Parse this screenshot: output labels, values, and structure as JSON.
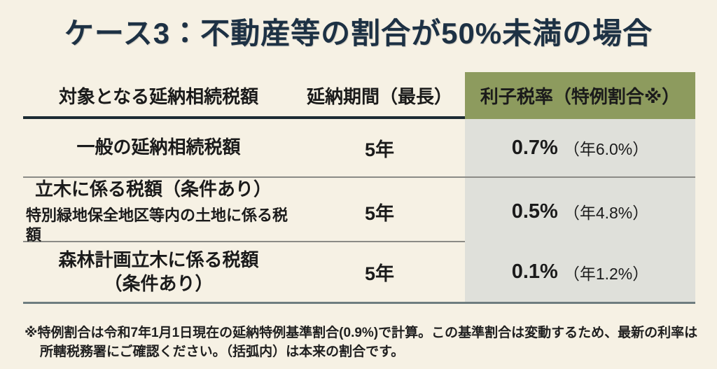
{
  "title": "ケース3：不動産等の割合が50%未満の場合",
  "table": {
    "headers": {
      "target": "対象となる延納相続税額",
      "period": "延納期間（最長）",
      "rate": "利子税率（特例割合※）"
    },
    "rows": [
      {
        "target_lines": [
          "一般の延納相続税額"
        ],
        "period": "5年",
        "rate": "0.7%",
        "original": "（年6.0%）"
      },
      {
        "target_lines": [
          "立木に係る税額（条件あり）",
          "特別緑地保全地区等内の土地に係る税額"
        ],
        "period": "5年",
        "rate": "0.5%",
        "original": "（年4.8%）"
      },
      {
        "target_lines": [
          "森林計画立木に係る税額",
          "（条件あり）"
        ],
        "period": "5年",
        "rate": "0.1%",
        "original": "（年1.2%）"
      }
    ]
  },
  "footnote": {
    "line1": "※特例割合は令和7年1月1日現在の延納特例基準割合(0.9%)で計算。この基準割合は変動するため、最新の利率は",
    "line2": "所轄税務署にご確認ください。（括弧内）は本来の割合です。"
  },
  "colors": {
    "bg": "#f6f1e4",
    "title": "#1d3144",
    "accent": "#8d9b5e",
    "colbg": "#dfe0da",
    "dark-line": "#1c2b33",
    "thin-line": "#8b8b86",
    "bottom-line": "#6e7d7f"
  }
}
